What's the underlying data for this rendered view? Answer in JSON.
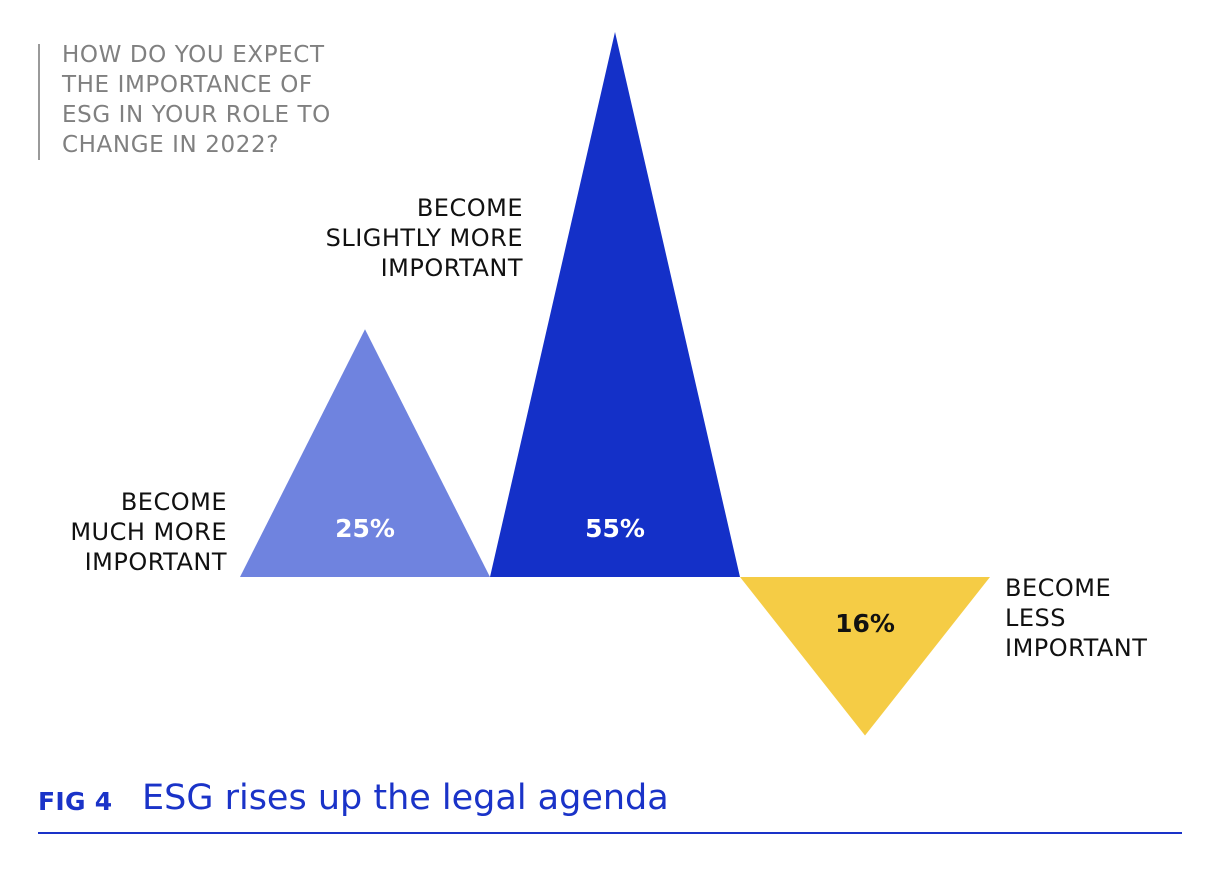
{
  "question": "HOW DO YOU EXPECT\nTHE IMPORTANCE OF\nESG IN YOUR ROLE TO\nCHANGE IN 2022?",
  "figure": {
    "label": "FIG 4",
    "title": "ESG rises up the legal agenda"
  },
  "chart_data": {
    "type": "bar",
    "categories": [
      "BECOME MUCH MORE IMPORTANT",
      "BECOME SLIGHTLY MORE IMPORTANT",
      "BECOME LESS IMPORTANT"
    ],
    "category_lines": [
      [
        "BECOME",
        "MUCH MORE",
        "IMPORTANT"
      ],
      [
        "BECOME",
        "SLIGHTLY MORE",
        "IMPORTANT"
      ],
      [
        "BECOME",
        "LESS",
        "IMPORTANT"
      ]
    ],
    "values": [
      25,
      55,
      16
    ],
    "value_labels": [
      "25%",
      "55%",
      "16%"
    ],
    "direction": [
      "up",
      "up",
      "down"
    ],
    "colors": [
      "#6f83df",
      "#1430c8",
      "#f5cc45"
    ],
    "value_label_colors": [
      "#ffffff",
      "#ffffff",
      "#111111"
    ],
    "unit": "%"
  }
}
